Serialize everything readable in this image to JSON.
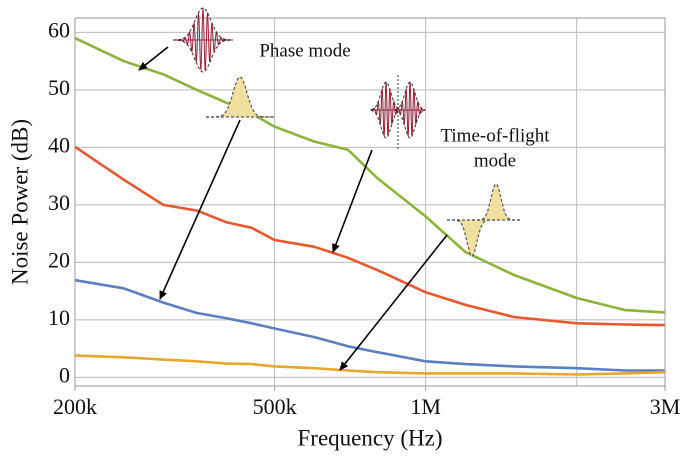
{
  "chart_data": {
    "type": "line",
    "xlabel": "Frequency (Hz)",
    "ylabel": "Noise Power (dB)",
    "x": [
      200000,
      250000,
      300000,
      350000,
      400000,
      450000,
      500000,
      600000,
      700000,
      800000,
      1000000,
      1200000,
      1500000,
      2000000,
      2500000,
      3000000
    ],
    "series": [
      {
        "color": "#8cb33a",
        "values": [
          59,
          55,
          52.7,
          50,
          47.8,
          45.9,
          43.6,
          41,
          39.6,
          34.7,
          28,
          21.8,
          17.8,
          13.8,
          11.7,
          11.3
        ]
      },
      {
        "color": "#e8572e",
        "values": [
          40.1,
          34.4,
          30,
          29,
          27,
          26,
          23.9,
          22.7,
          20.8,
          18.7,
          14.8,
          12.6,
          10.5,
          9.4,
          9.2,
          9.1
        ]
      },
      {
        "color": "#5b7fc0",
        "values": [
          16.9,
          15.5,
          13,
          11.2,
          10.3,
          9.4,
          8.5,
          7,
          5.4,
          4.4,
          2.8,
          2.3,
          1.9,
          1.6,
          1.2,
          1.2
        ]
      },
      {
        "color": "#e8a72a",
        "values": [
          3.8,
          3.5,
          3.1,
          2.8,
          2.4,
          2.3,
          1.9,
          1.6,
          1.2,
          0.9,
          0.7,
          0.7,
          0.7,
          0.5,
          0.7,
          0.9
        ]
      }
    ],
    "xscale": "log",
    "xlim": [
      200000,
      3000000
    ],
    "xticks": [
      {
        "value": 200000,
        "label": "200k"
      },
      {
        "value": 500000,
        "label": "500k"
      },
      {
        "value": 1000000,
        "label": "1M"
      },
      {
        "value": 3000000,
        "label": "3M"
      }
    ],
    "xgrid": [
      500000,
      1000000,
      2000000
    ],
    "ylim": [
      -1.5,
      62.5
    ],
    "yticks": [
      0,
      10,
      20,
      30,
      40,
      50,
      60
    ],
    "grid": true,
    "annotations": [
      {
        "lines": [
          "Phase mode"
        ]
      },
      {
        "lines": [
          "Time-of-flight",
          "mode"
        ]
      }
    ]
  }
}
